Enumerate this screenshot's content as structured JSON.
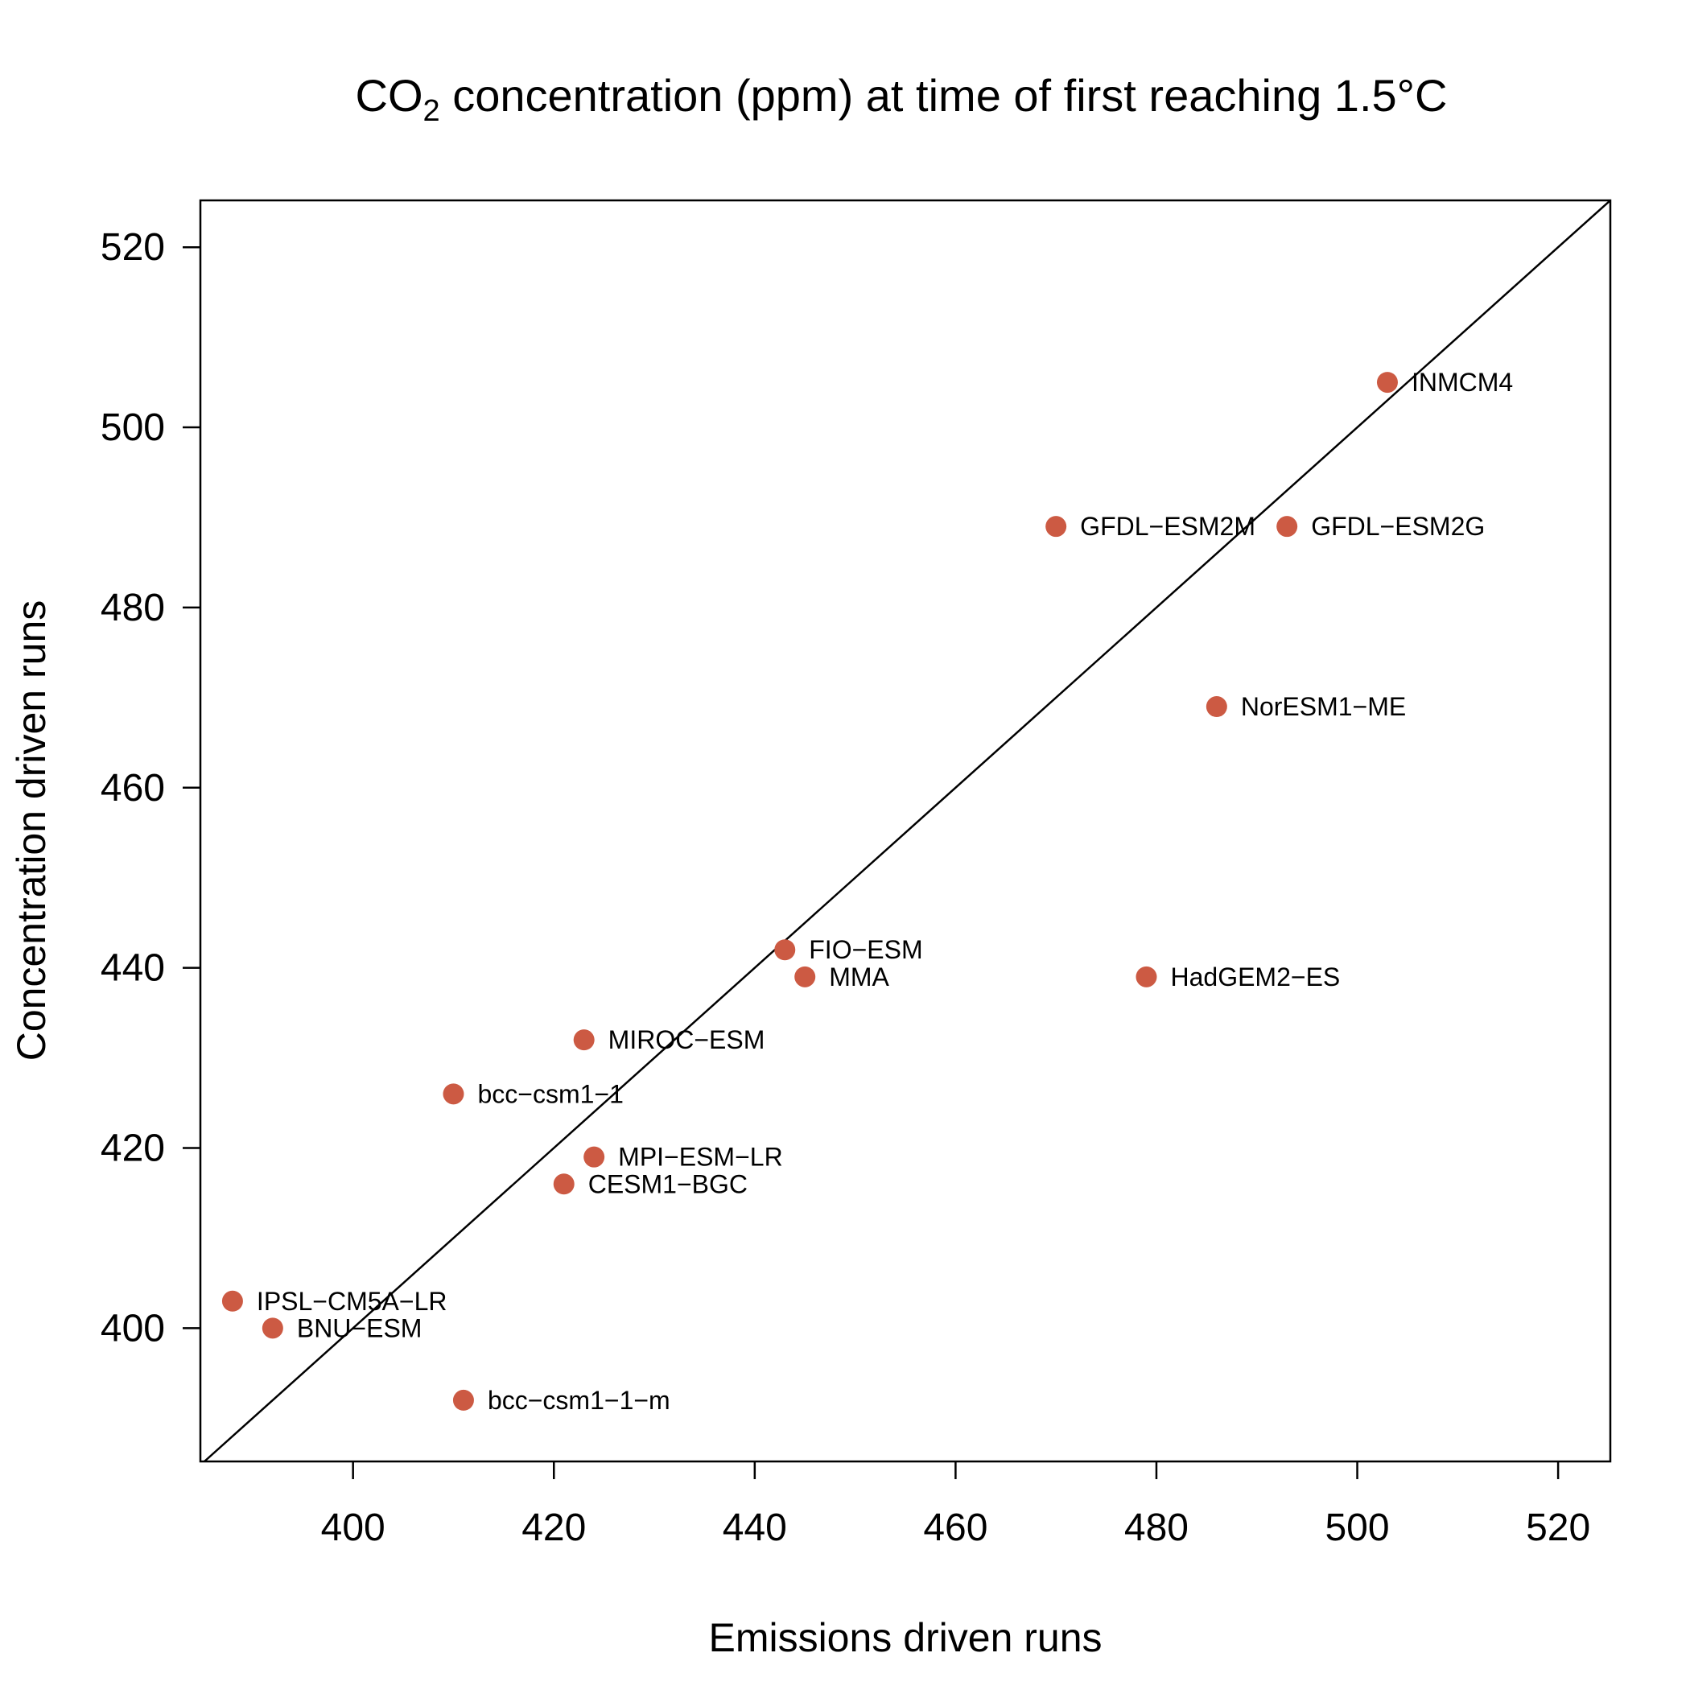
{
  "chart_data": {
    "type": "scatter",
    "title": "CO",
    "title_subscript": "2",
    "title_rest": " concentration (ppm) at time of first reaching 1.5°C",
    "xlabel": "Emissions driven runs",
    "ylabel": "Concentration driven runs",
    "xlim": [
      384.8,
      525.2
    ],
    "ylim": [
      385.2,
      525.2
    ],
    "xticks": [
      400,
      420,
      440,
      460,
      480,
      500,
      520
    ],
    "yticks": [
      400,
      420,
      440,
      460,
      480,
      500,
      520
    ],
    "reference_line": "1:1 diagonal",
    "grid": false,
    "point_color": "#cc5a43",
    "points": [
      {
        "label": "INMCM4",
        "x": 503,
        "y": 505
      },
      {
        "label": "GFDL−ESM2M",
        "x": 470,
        "y": 489
      },
      {
        "label": "GFDL−ESM2G",
        "x": 493,
        "y": 489
      },
      {
        "label": "NorESM1−ME",
        "x": 486,
        "y": 469
      },
      {
        "label": "FIO−ESM",
        "x": 443,
        "y": 442
      },
      {
        "label": "MMA",
        "x": 445,
        "y": 439
      },
      {
        "label": "HadGEM2−ES",
        "x": 479,
        "y": 439
      },
      {
        "label": "MIROC−ESM",
        "x": 423,
        "y": 432
      },
      {
        "label": "bcc−csm1−1",
        "x": 410,
        "y": 426
      },
      {
        "label": "MPI−ESM−LR",
        "x": 424,
        "y": 419
      },
      {
        "label": "CESM1−BGC",
        "x": 421,
        "y": 416
      },
      {
        "label": "IPSL−CM5A−LR",
        "x": 388,
        "y": 403
      },
      {
        "label": "BNU−ESM",
        "x": 392,
        "y": 400
      },
      {
        "label": "bcc−csm1−1−m",
        "x": 411,
        "y": 392
      }
    ]
  }
}
